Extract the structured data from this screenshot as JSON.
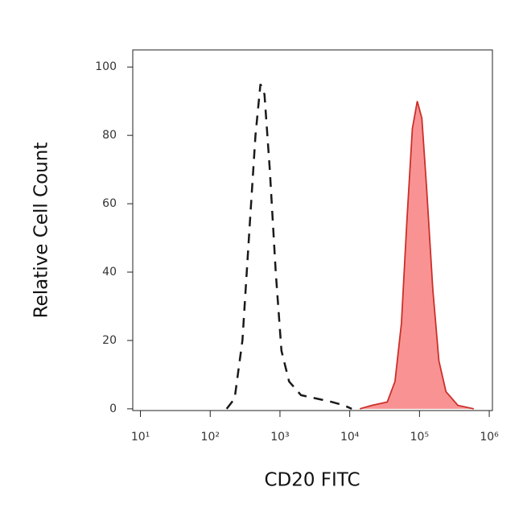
{
  "chart_data": {
    "type": "histogram-overlay",
    "xlabel": "CD20 FITC",
    "ylabel": "Relative Cell Count",
    "xscale": "log",
    "xlim": [
      7.76,
      1110000
    ],
    "xticks": [
      {
        "value": 10,
        "label": "10¹"
      },
      {
        "value": 100,
        "label": "10²"
      },
      {
        "value": 1000,
        "label": "10³"
      },
      {
        "value": 10000,
        "label": "10⁴"
      },
      {
        "value": 100000,
        "label": "10⁵"
      },
      {
        "value": 1000000,
        "label": "10⁶"
      }
    ],
    "ylim": [
      -0.5,
      105
    ],
    "yticks": [
      0,
      20,
      40,
      60,
      80,
      100
    ],
    "series": [
      {
        "color": "#1a1a1a",
        "dashed": true,
        "filled": false,
        "x": [
          172,
          224,
          290,
          372,
          445,
          525,
          600,
          715,
          870,
          1050,
          1350,
          2000,
          3350,
          5600,
          8300,
          10700
        ],
        "values": [
          0,
          3,
          20,
          55,
          80,
          95,
          92,
          70,
          40,
          17,
          8,
          4,
          3,
          2,
          1,
          0
        ]
      },
      {
        "color": "#cc2f2a",
        "fill_color": "#f99393",
        "dashed": false,
        "filled": true,
        "x": [
          14000,
          20600,
          34500,
          44500,
          55000,
          66000,
          79000,
          93000,
          108000,
          126000,
          155000,
          190000,
          240000,
          355000,
          600000
        ],
        "values": [
          0,
          1,
          2,
          8,
          25,
          55,
          82,
          90,
          85,
          65,
          35,
          14,
          5,
          1,
          0
        ]
      }
    ]
  }
}
